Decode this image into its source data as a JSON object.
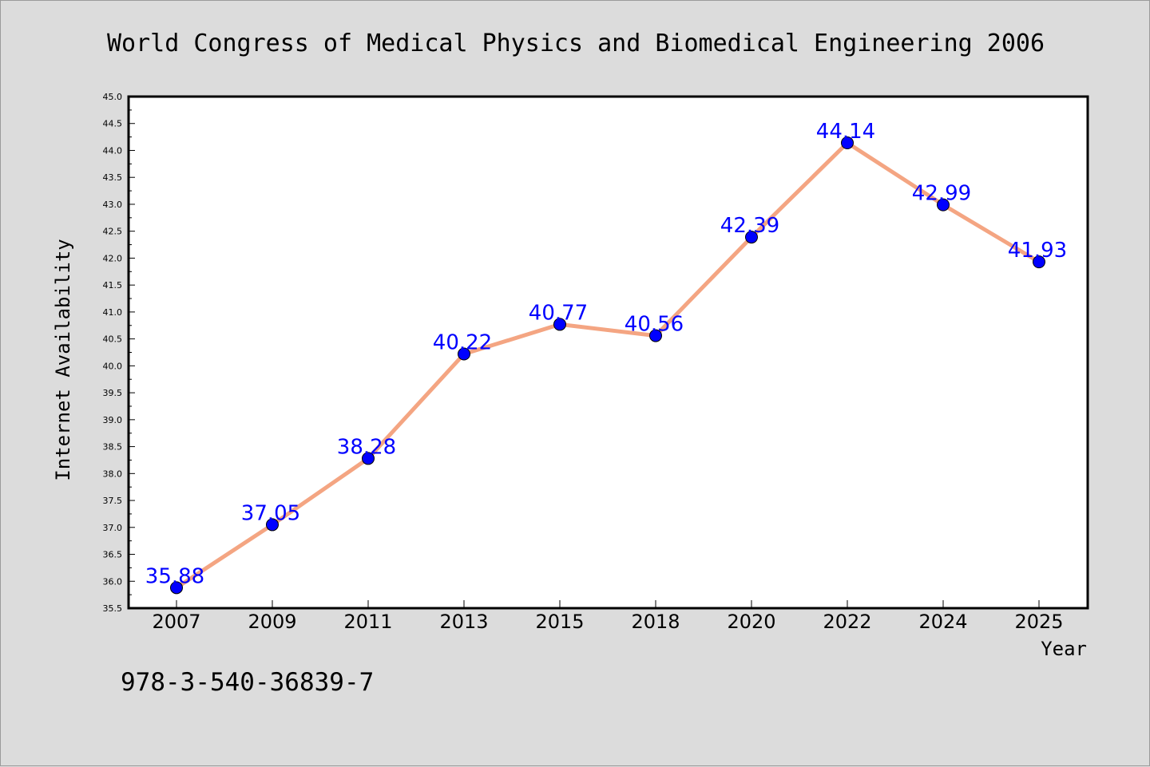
{
  "chart_data": {
    "type": "line",
    "title": "World Congress of Medical Physics and Biomedical Engineering 2006",
    "xlabel": "Year",
    "ylabel": "Internet Availability",
    "categories": [
      "2007",
      "2009",
      "2011",
      "2013",
      "2015",
      "2018",
      "2020",
      "2022",
      "2024",
      "2025"
    ],
    "series": [
      {
        "values": [
          35.88,
          37.05,
          38.28,
          40.22,
          40.77,
          40.56,
          42.39,
          44.14,
          42.99,
          41.93
        ],
        "line_color": "#f4a582",
        "marker_color": "#0000ff"
      }
    ],
    "data_labels": [
      "35.88",
      "37.05",
      "38.28",
      "40.22",
      "40.77",
      "40.56",
      "42.39",
      "44.14",
      "42.99",
      "41.93"
    ],
    "ylim": [
      35.5,
      45.0
    ],
    "yticks": [
      "35.5",
      "36.0",
      "36.5",
      "37.0",
      "37.5",
      "38.0",
      "38.5",
      "39.0",
      "39.5",
      "40.0",
      "40.5",
      "41.0",
      "41.5",
      "42.0",
      "42.5",
      "43.0",
      "43.5",
      "44.0",
      "44.5",
      "45.0"
    ],
    "grid": false,
    "legend": "none"
  },
  "footnote": "978-3-540-36839-7",
  "colors": {
    "background": "#dcdcdc",
    "plot_background": "#ffffff",
    "line": "#f4a582",
    "marker": "#0000ff",
    "data_label": "#0000ff"
  }
}
